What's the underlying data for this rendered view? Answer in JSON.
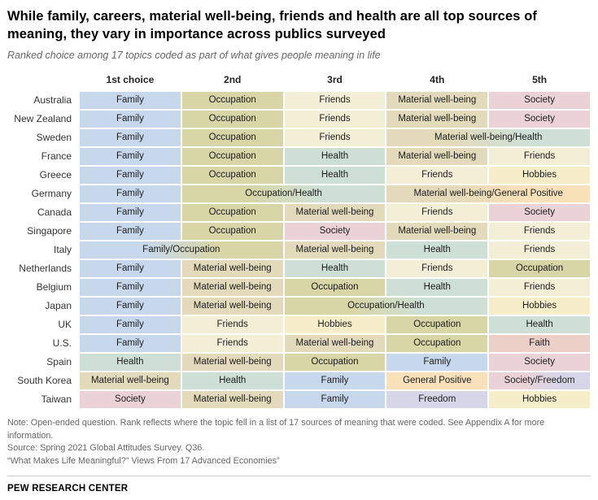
{
  "header": {
    "title": "While family, careers, material well-being, friends and health are all top sources of meaning, they vary in importance across publics surveyed",
    "subtitle": "Ranked choice among 17 topics coded as part of what gives people meaning in life"
  },
  "topic_colors": {
    "Family": "#c8d8ec",
    "Occupation": "#d8d5a6",
    "Friends": "#f3eed6",
    "Material well-being": "#e3dabb",
    "Society": "#ebd2d6",
    "Health": "#cee0d6",
    "Hobbies": "#f5eec9",
    "Faith": "#ecd0c8",
    "General Positive": "#f8e0b8",
    "Freedom": "#d7d6e8"
  },
  "chart_data": {
    "type": "table",
    "title": "Ranked choice among 17 topics coded as part of what gives people meaning in life",
    "columns": [
      "1st choice",
      "2nd",
      "3rd",
      "4th",
      "5th"
    ],
    "rows": [
      {
        "label": "Australia",
        "cells": [
          {
            "label": "Family",
            "span": 1,
            "topics": [
              "Family"
            ]
          },
          {
            "label": "Occupation",
            "span": 1,
            "topics": [
              "Occupation"
            ]
          },
          {
            "label": "Friends",
            "span": 1,
            "topics": [
              "Friends"
            ]
          },
          {
            "label": "Material well-being",
            "span": 1,
            "topics": [
              "Material well-being"
            ]
          },
          {
            "label": "Society",
            "span": 1,
            "topics": [
              "Society"
            ]
          }
        ]
      },
      {
        "label": "New Zealand",
        "cells": [
          {
            "label": "Family",
            "span": 1,
            "topics": [
              "Family"
            ]
          },
          {
            "label": "Occupation",
            "span": 1,
            "topics": [
              "Occupation"
            ]
          },
          {
            "label": "Friends",
            "span": 1,
            "topics": [
              "Friends"
            ]
          },
          {
            "label": "Material well-being",
            "span": 1,
            "topics": [
              "Material well-being"
            ]
          },
          {
            "label": "Society",
            "span": 1,
            "topics": [
              "Society"
            ]
          }
        ]
      },
      {
        "label": "Sweden",
        "cells": [
          {
            "label": "Family",
            "span": 1,
            "topics": [
              "Family"
            ]
          },
          {
            "label": "Occupation",
            "span": 1,
            "topics": [
              "Occupation"
            ]
          },
          {
            "label": "Friends",
            "span": 1,
            "topics": [
              "Friends"
            ]
          },
          {
            "label": "Material well-being/Health",
            "span": 2,
            "topics": [
              "Material well-being",
              "Health"
            ]
          }
        ]
      },
      {
        "label": "France",
        "cells": [
          {
            "label": "Family",
            "span": 1,
            "topics": [
              "Family"
            ]
          },
          {
            "label": "Occupation",
            "span": 1,
            "topics": [
              "Occupation"
            ]
          },
          {
            "label": "Health",
            "span": 1,
            "topics": [
              "Health"
            ]
          },
          {
            "label": "Material well-being",
            "span": 1,
            "topics": [
              "Material well-being"
            ]
          },
          {
            "label": "Friends",
            "span": 1,
            "topics": [
              "Friends"
            ]
          }
        ]
      },
      {
        "label": "Greece",
        "cells": [
          {
            "label": "Family",
            "span": 1,
            "topics": [
              "Family"
            ]
          },
          {
            "label": "Occupation",
            "span": 1,
            "topics": [
              "Occupation"
            ]
          },
          {
            "label": "Health",
            "span": 1,
            "topics": [
              "Health"
            ]
          },
          {
            "label": "Friends",
            "span": 1,
            "topics": [
              "Friends"
            ]
          },
          {
            "label": "Hobbies",
            "span": 1,
            "topics": [
              "Hobbies"
            ]
          }
        ]
      },
      {
        "label": "Germany",
        "cells": [
          {
            "label": "Family",
            "span": 1,
            "topics": [
              "Family"
            ]
          },
          {
            "label": "Occupation/Health",
            "span": 2,
            "topics": [
              "Occupation",
              "Health"
            ]
          },
          {
            "label": "Material well-being/General Positive",
            "span": 2,
            "topics": [
              "Material well-being",
              "General Positive"
            ]
          }
        ]
      },
      {
        "label": "Canada",
        "cells": [
          {
            "label": "Family",
            "span": 1,
            "topics": [
              "Family"
            ]
          },
          {
            "label": "Occupation",
            "span": 1,
            "topics": [
              "Occupation"
            ]
          },
          {
            "label": "Material well-being",
            "span": 1,
            "topics": [
              "Material well-being"
            ]
          },
          {
            "label": "Friends",
            "span": 1,
            "topics": [
              "Friends"
            ]
          },
          {
            "label": "Society",
            "span": 1,
            "topics": [
              "Society"
            ]
          }
        ]
      },
      {
        "label": "Singapore",
        "cells": [
          {
            "label": "Family",
            "span": 1,
            "topics": [
              "Family"
            ]
          },
          {
            "label": "Occupation",
            "span": 1,
            "topics": [
              "Occupation"
            ]
          },
          {
            "label": "Society",
            "span": 1,
            "topics": [
              "Society"
            ]
          },
          {
            "label": "Material well-being",
            "span": 1,
            "topics": [
              "Material well-being"
            ]
          },
          {
            "label": "Friends",
            "span": 1,
            "topics": [
              "Friends"
            ]
          }
        ]
      },
      {
        "label": "Italy",
        "cells": [
          {
            "label": "Family/Occupation",
            "span": 2,
            "topics": [
              "Family",
              "Occupation"
            ]
          },
          {
            "label": "Material well-being",
            "span": 1,
            "topics": [
              "Material well-being"
            ]
          },
          {
            "label": "Health",
            "span": 1,
            "topics": [
              "Health"
            ]
          },
          {
            "label": "Friends",
            "span": 1,
            "topics": [
              "Friends"
            ]
          }
        ]
      },
      {
        "label": "Netherlands",
        "cells": [
          {
            "label": "Family",
            "span": 1,
            "topics": [
              "Family"
            ]
          },
          {
            "label": "Material well-being",
            "span": 1,
            "topics": [
              "Material well-being"
            ]
          },
          {
            "label": "Health",
            "span": 1,
            "topics": [
              "Health"
            ]
          },
          {
            "label": "Friends",
            "span": 1,
            "topics": [
              "Friends"
            ]
          },
          {
            "label": "Occupation",
            "span": 1,
            "topics": [
              "Occupation"
            ]
          }
        ]
      },
      {
        "label": "Belgium",
        "cells": [
          {
            "label": "Family",
            "span": 1,
            "topics": [
              "Family"
            ]
          },
          {
            "label": "Material well-being",
            "span": 1,
            "topics": [
              "Material well-being"
            ]
          },
          {
            "label": "Occupation",
            "span": 1,
            "topics": [
              "Occupation"
            ]
          },
          {
            "label": "Health",
            "span": 1,
            "topics": [
              "Health"
            ]
          },
          {
            "label": "Friends",
            "span": 1,
            "topics": [
              "Friends"
            ]
          }
        ]
      },
      {
        "label": "Japan",
        "cells": [
          {
            "label": "Family",
            "span": 1,
            "topics": [
              "Family"
            ]
          },
          {
            "label": "Material well-being",
            "span": 1,
            "topics": [
              "Material well-being"
            ]
          },
          {
            "label": "Occupation/Health",
            "span": 2,
            "topics": [
              "Occupation",
              "Health"
            ]
          },
          {
            "label": "Hobbies",
            "span": 1,
            "topics": [
              "Hobbies"
            ]
          }
        ]
      },
      {
        "label": "UK",
        "cells": [
          {
            "label": "Family",
            "span": 1,
            "topics": [
              "Family"
            ]
          },
          {
            "label": "Friends",
            "span": 1,
            "topics": [
              "Friends"
            ]
          },
          {
            "label": "Hobbies",
            "span": 1,
            "topics": [
              "Hobbies"
            ]
          },
          {
            "label": "Occupation",
            "span": 1,
            "topics": [
              "Occupation"
            ]
          },
          {
            "label": "Health",
            "span": 1,
            "topics": [
              "Health"
            ]
          }
        ]
      },
      {
        "label": "U.S.",
        "cells": [
          {
            "label": "Family",
            "span": 1,
            "topics": [
              "Family"
            ]
          },
          {
            "label": "Friends",
            "span": 1,
            "topics": [
              "Friends"
            ]
          },
          {
            "label": "Material well-being",
            "span": 1,
            "topics": [
              "Material well-being"
            ]
          },
          {
            "label": "Occupation",
            "span": 1,
            "topics": [
              "Occupation"
            ]
          },
          {
            "label": "Faith",
            "span": 1,
            "topics": [
              "Faith"
            ]
          }
        ]
      },
      {
        "label": "Spain",
        "cells": [
          {
            "label": "Health",
            "span": 1,
            "topics": [
              "Health"
            ]
          },
          {
            "label": "Material well-being",
            "span": 1,
            "topics": [
              "Material well-being"
            ]
          },
          {
            "label": "Occupation",
            "span": 1,
            "topics": [
              "Occupation"
            ]
          },
          {
            "label": "Family",
            "span": 1,
            "topics": [
              "Family"
            ]
          },
          {
            "label": "Society",
            "span": 1,
            "topics": [
              "Society"
            ]
          }
        ]
      },
      {
        "label": "South Korea",
        "cells": [
          {
            "label": "Material well-being",
            "span": 1,
            "topics": [
              "Material well-being"
            ]
          },
          {
            "label": "Health",
            "span": 1,
            "topics": [
              "Health"
            ]
          },
          {
            "label": "Family",
            "span": 1,
            "topics": [
              "Family"
            ]
          },
          {
            "label": "General Positive",
            "span": 1,
            "topics": [
              "General Positive"
            ]
          },
          {
            "label": "Society/Freedom",
            "span": 1,
            "topics": [
              "Society",
              "Freedom"
            ]
          }
        ]
      },
      {
        "label": "Taiwan",
        "cells": [
          {
            "label": "Society",
            "span": 1,
            "topics": [
              "Society"
            ]
          },
          {
            "label": "Material well-being",
            "span": 1,
            "topics": [
              "Material well-being"
            ]
          },
          {
            "label": "Family",
            "span": 1,
            "topics": [
              "Family"
            ]
          },
          {
            "label": "Freedom",
            "span": 1,
            "topics": [
              "Freedom"
            ]
          },
          {
            "label": "Hobbies",
            "span": 1,
            "topics": [
              "Hobbies"
            ]
          }
        ]
      }
    ]
  },
  "footer": {
    "note": "Note: Open-ended question. Rank reflects where the topic fell in a list of 17 sources of meaning that were coded. See Appendix A for more information.",
    "source": "Source: Spring 2021 Global Attitudes Survey. Q36.",
    "report": "“What Makes Life Meaningful?” Views From 17 Advanced Economies”",
    "brand": "PEW RESEARCH CENTER"
  }
}
